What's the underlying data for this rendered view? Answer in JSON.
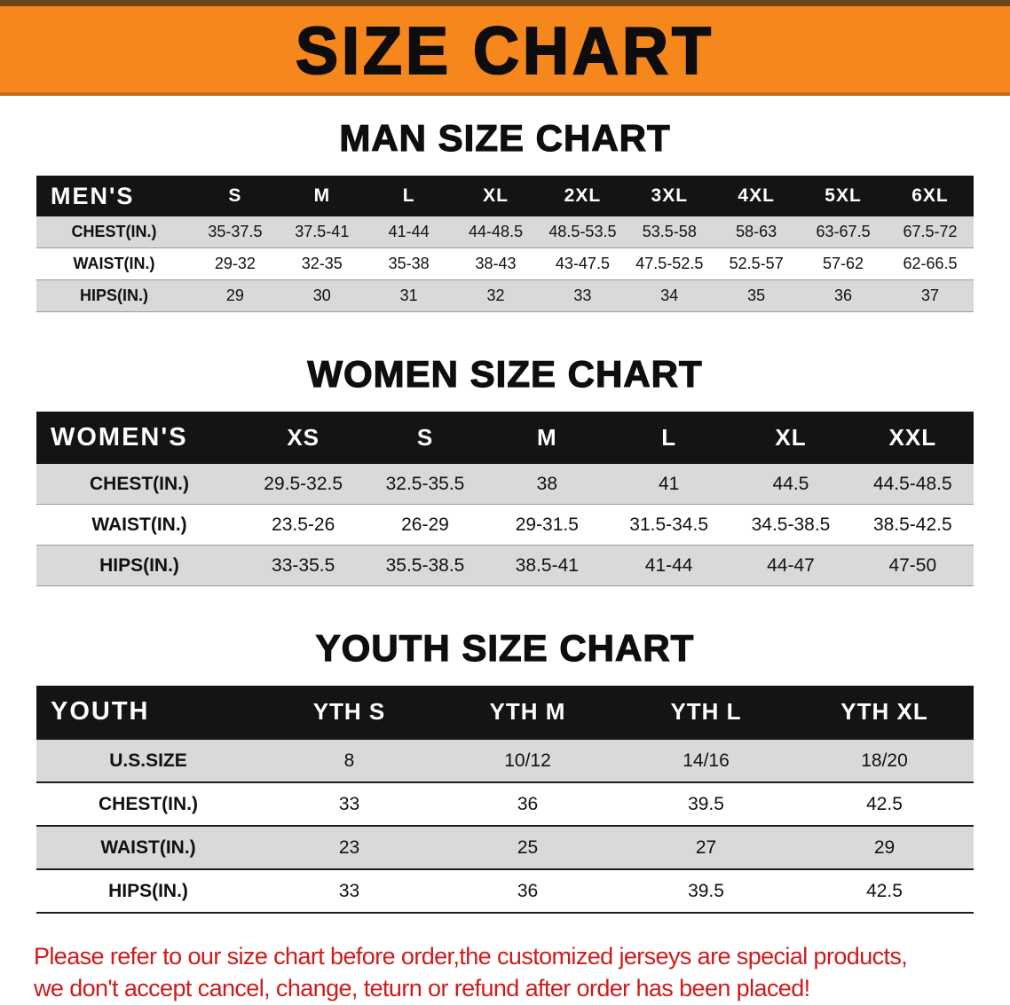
{
  "banner": {
    "title": "SIZE CHART"
  },
  "sections": [
    {
      "variant": "men",
      "title": "MAN SIZE CHART",
      "header_label": "MEN'S",
      "columns": [
        "S",
        "M",
        "L",
        "XL",
        "2XL",
        "3XL",
        "4XL",
        "5XL",
        "6XL"
      ],
      "rows": [
        {
          "label": "CHEST(IN.)",
          "values": [
            "35-37.5",
            "37.5-41",
            "41-44",
            "44-48.5",
            "48.5-53.5",
            "53.5-58",
            "58-63",
            "63-67.5",
            "67.5-72"
          ]
        },
        {
          "label": "WAIST(IN.)",
          "values": [
            "29-32",
            "32-35",
            "35-38",
            "38-43",
            "43-47.5",
            "47.5-52.5",
            "52.5-57",
            "57-62",
            "62-66.5"
          ]
        },
        {
          "label": "HIPS(IN.)",
          "values": [
            "29",
            "30",
            "31",
            "32",
            "33",
            "34",
            "35",
            "36",
            "37"
          ]
        }
      ]
    },
    {
      "variant": "women",
      "title": "WOMEN SIZE CHART",
      "header_label": "WOMEN'S",
      "columns": [
        "XS",
        "S",
        "M",
        "L",
        "XL",
        "XXL"
      ],
      "rows": [
        {
          "label": "CHEST(IN.)",
          "values": [
            "29.5-32.5",
            "32.5-35.5",
            "38",
            "41",
            "44.5",
            "44.5-48.5"
          ]
        },
        {
          "label": "WAIST(IN.)",
          "values": [
            "23.5-26",
            "26-29",
            "29-31.5",
            "31.5-34.5",
            "34.5-38.5",
            "38.5-42.5"
          ]
        },
        {
          "label": "HIPS(IN.)",
          "values": [
            "33-35.5",
            "35.5-38.5",
            "38.5-41",
            "41-44",
            "44-47",
            "47-50"
          ]
        }
      ]
    },
    {
      "variant": "youth",
      "title": "YOUTH SIZE CHART",
      "header_label": "YOUTH",
      "columns": [
        "YTH S",
        "YTH M",
        "YTH L",
        "YTH XL"
      ],
      "rows": [
        {
          "label": "U.S.SIZE",
          "values": [
            "8",
            "10/12",
            "14/16",
            "18/20"
          ]
        },
        {
          "label": "CHEST(IN.)",
          "values": [
            "33",
            "36",
            "39.5",
            "42.5"
          ]
        },
        {
          "label": "WAIST(IN.)",
          "values": [
            "23",
            "25",
            "27",
            "29"
          ]
        },
        {
          "label": "HIPS(IN.)",
          "values": [
            "33",
            "36",
            "39.5",
            "42.5"
          ]
        }
      ]
    }
  ],
  "notice": {
    "lines": [
      "Please refer to our size chart before order,the customized jerseys are special products,",
      "we don't accept cancel, change, teturn or refund after order has been placed!"
    ]
  },
  "colors": {
    "banner_bg": "#f6871d",
    "banner_edge": "#6e4514",
    "table_header_bg": "#141414",
    "row_alt": "#d9d9d9",
    "notice_red": "#cf1b1b"
  }
}
